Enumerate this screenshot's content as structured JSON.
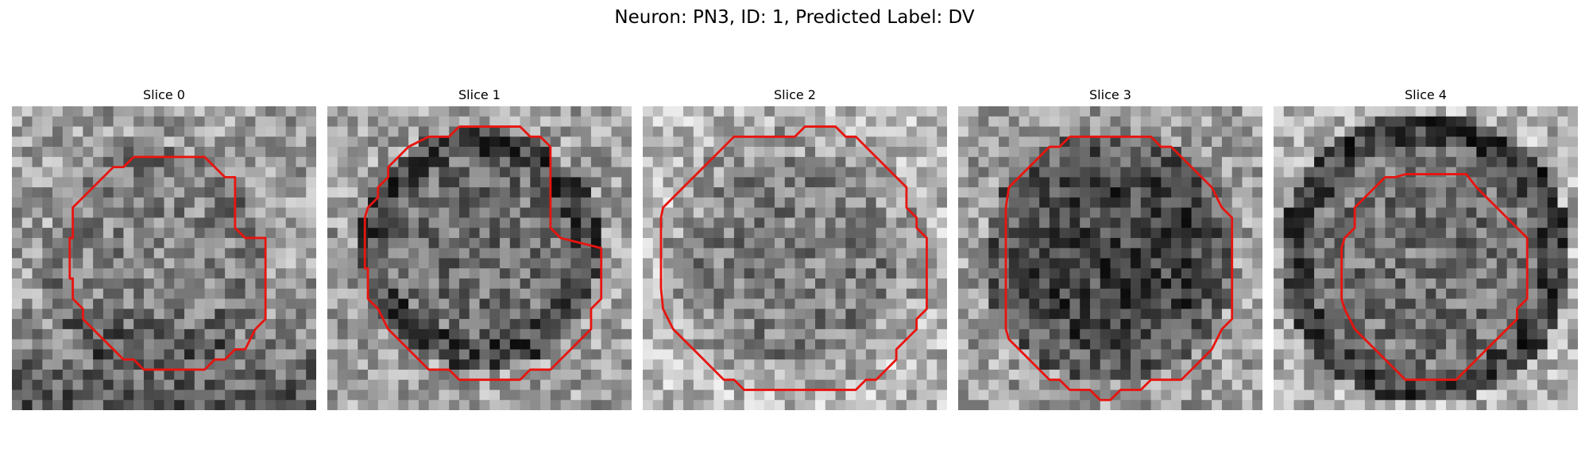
{
  "figure": {
    "title": "Neuron: PN3, ID: 1, Predicted Label: DV",
    "contour_color": "#e8140f"
  },
  "panels": [
    {
      "title": "Slice 0"
    },
    {
      "title": "Slice 1"
    },
    {
      "title": "Slice 2"
    },
    {
      "title": "Slice 3"
    },
    {
      "title": "Slice 4"
    }
  ]
}
